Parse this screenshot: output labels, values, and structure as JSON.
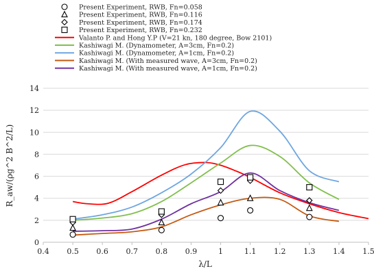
{
  "chart_data": {
    "type": "line",
    "title": "",
    "xlabel": "λ/L",
    "ylabel": "R_aw/(ρg^2 B^2/L)",
    "xlim": [
      0.4,
      1.5
    ],
    "ylim": [
      0,
      14
    ],
    "xticks": [
      "0.4",
      "0.5",
      "0.6",
      "0.7",
      "0.8",
      "0.9",
      "1",
      "1.1",
      "1.2",
      "1.3",
      "1.4",
      "1.5"
    ],
    "yticks": [
      "0",
      "2",
      "4",
      "6",
      "8",
      "10",
      "12",
      "14"
    ],
    "grid": "horizontal",
    "legend_placement": "top",
    "series": [
      {
        "name": "Present Experiment, RWB, Fn=0.058",
        "kind": "marker",
        "marker": "circle",
        "points": [
          [
            0.5,
            0.7
          ],
          [
            0.8,
            1.1
          ],
          [
            1.0,
            2.2
          ],
          [
            1.1,
            2.9
          ],
          [
            1.3,
            2.3
          ]
        ]
      },
      {
        "name": "Present Experiment, RWB, Fn=0.116",
        "kind": "marker",
        "marker": "triangle",
        "points": [
          [
            0.5,
            1.3
          ],
          [
            0.8,
            1.8
          ],
          [
            1.0,
            3.6
          ],
          [
            1.1,
            4.0
          ],
          [
            1.3,
            3.1
          ]
        ]
      },
      {
        "name": "Present Experiment, RWB, Fn=0.174",
        "kind": "marker",
        "marker": "diamond",
        "points": [
          [
            0.5,
            1.8
          ],
          [
            0.8,
            2.5
          ],
          [
            1.0,
            4.7
          ],
          [
            1.1,
            5.6
          ],
          [
            1.3,
            3.8
          ]
        ]
      },
      {
        "name": "Present Experiment, RWB, Fn=0.232",
        "kind": "marker",
        "marker": "square",
        "points": [
          [
            0.5,
            2.1
          ],
          [
            0.8,
            2.8
          ],
          [
            1.0,
            5.5
          ],
          [
            1.1,
            5.9
          ],
          [
            1.3,
            5.0
          ]
        ]
      },
      {
        "name": "Valanto P. and Hong Y.P (V=21 kn, 180 degree, Bow 2101)",
        "kind": "line",
        "color": "#ff0000",
        "points": [
          [
            0.5,
            3.7
          ],
          [
            0.55,
            3.5
          ],
          [
            0.62,
            3.55
          ],
          [
            0.7,
            4.6
          ],
          [
            0.8,
            6.1
          ],
          [
            0.88,
            7.05
          ],
          [
            0.95,
            7.25
          ],
          [
            1.0,
            7.0
          ],
          [
            1.05,
            6.5
          ],
          [
            1.1,
            5.9
          ],
          [
            1.2,
            4.5
          ],
          [
            1.3,
            3.5
          ],
          [
            1.4,
            2.7
          ],
          [
            1.5,
            2.15
          ]
        ]
      },
      {
        "name": "Kashiwagi M. (Dynamometer, A=3cm, Fn=0.2)",
        "kind": "line",
        "color": "#7fbf4a",
        "points": [
          [
            0.5,
            2.0
          ],
          [
            0.6,
            2.2
          ],
          [
            0.7,
            2.6
          ],
          [
            0.8,
            3.7
          ],
          [
            0.9,
            5.4
          ],
          [
            1.0,
            7.2
          ],
          [
            1.1,
            8.8
          ],
          [
            1.2,
            7.8
          ],
          [
            1.3,
            5.4
          ],
          [
            1.4,
            3.9
          ]
        ]
      },
      {
        "name": "Kashiwagi M. (Dynamometer, A=1cm, Fn=0.2)",
        "kind": "line",
        "color": "#6ea6e0",
        "points": [
          [
            0.5,
            2.1
          ],
          [
            0.6,
            2.5
          ],
          [
            0.7,
            3.2
          ],
          [
            0.8,
            4.5
          ],
          [
            0.9,
            6.2
          ],
          [
            1.0,
            8.6
          ],
          [
            1.1,
            11.9
          ],
          [
            1.2,
            10.1
          ],
          [
            1.3,
            6.5
          ],
          [
            1.4,
            5.5
          ]
        ]
      },
      {
        "name": "Kashiwagi M. (With measured wave, A=3cm, Fn=0.2)",
        "kind": "line",
        "color": "#c55a11",
        "points": [
          [
            0.5,
            0.65
          ],
          [
            0.6,
            0.8
          ],
          [
            0.7,
            0.95
          ],
          [
            0.8,
            1.4
          ],
          [
            0.9,
            2.5
          ],
          [
            1.0,
            3.4
          ],
          [
            1.1,
            4.0
          ],
          [
            1.2,
            3.9
          ],
          [
            1.3,
            2.4
          ],
          [
            1.4,
            1.9
          ]
        ]
      },
      {
        "name": "Kashiwagi M. (With measured wave, A=1cm, Fn=0.2)",
        "kind": "line",
        "color": "#7030a0",
        "points": [
          [
            0.5,
            1.0
          ],
          [
            0.6,
            1.05
          ],
          [
            0.7,
            1.2
          ],
          [
            0.8,
            2.1
          ],
          [
            0.9,
            3.5
          ],
          [
            1.0,
            4.6
          ],
          [
            1.1,
            6.3
          ],
          [
            1.2,
            4.7
          ],
          [
            1.3,
            3.6
          ],
          [
            1.4,
            2.9
          ]
        ]
      }
    ]
  }
}
